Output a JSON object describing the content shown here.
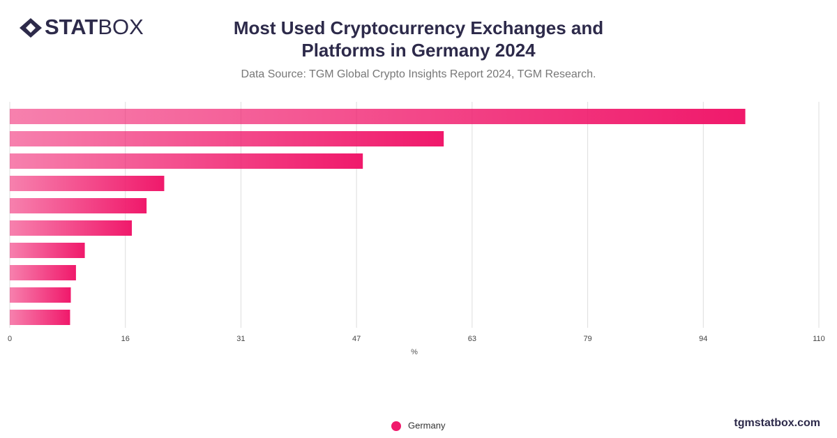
{
  "brand": {
    "bold": "STAT",
    "light": "BOX"
  },
  "footer": "tgmstatbox.com",
  "chart_data": {
    "type": "bar",
    "orientation": "horizontal",
    "title": "Most Used Cryptocurrency Exchanges and Platforms in Germany 2024",
    "subtitle": "Data Source: TGM Global Crypto Insights Report 2024, TGM Research.",
    "x_label": "%",
    "categories": [
      null,
      null,
      null,
      null,
      null,
      null,
      null,
      null,
      null,
      null
    ],
    "series": [
      {
        "name": "Germany",
        "color": "#f0196b",
        "values": [
          100,
          59,
          48,
          21,
          18.6,
          16.6,
          10.2,
          9,
          8.3,
          8.2
        ]
      }
    ],
    "xlim": [
      0,
      110
    ],
    "xticks": [
      0,
      {
        "value": 15.714,
        "label": "16"
      },
      {
        "value": 31.429,
        "label": "31"
      },
      {
        "value": 47.143,
        "label": "47"
      },
      {
        "value": 62.857,
        "label": "63"
      },
      {
        "value": 78.571,
        "label": "79"
      },
      {
        "value": 94.286,
        "label": "94"
      },
      110
    ],
    "grid": true,
    "legend": "bottom"
  }
}
